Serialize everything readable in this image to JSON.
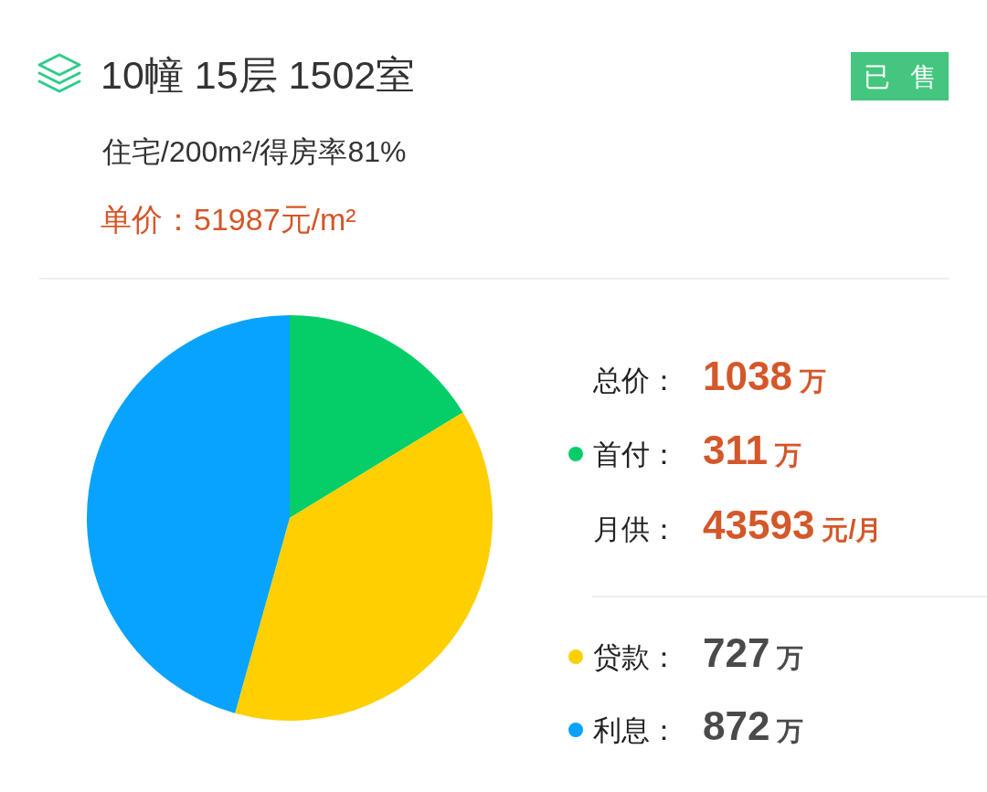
{
  "chart_data": {
    "type": "pie",
    "title": "10幢 15层 1502室",
    "subtitle": "住宅/200m²/得房率81%",
    "annotations": [
      "已 售",
      "单价：51987元/m²",
      "总价：",
      "1038 万",
      "月供：",
      "43593 元/月",
      "："
    ],
    "categories": [
      "首付",
      "贷款",
      "利息"
    ],
    "values": [
      311,
      727,
      872
    ],
    "value_labels": [
      "311 万",
      "727 万",
      "872 万"
    ],
    "colors": [
      "#05cd68",
      "#fed001",
      "#07a3fe"
    ],
    "legend": "right"
  }
}
